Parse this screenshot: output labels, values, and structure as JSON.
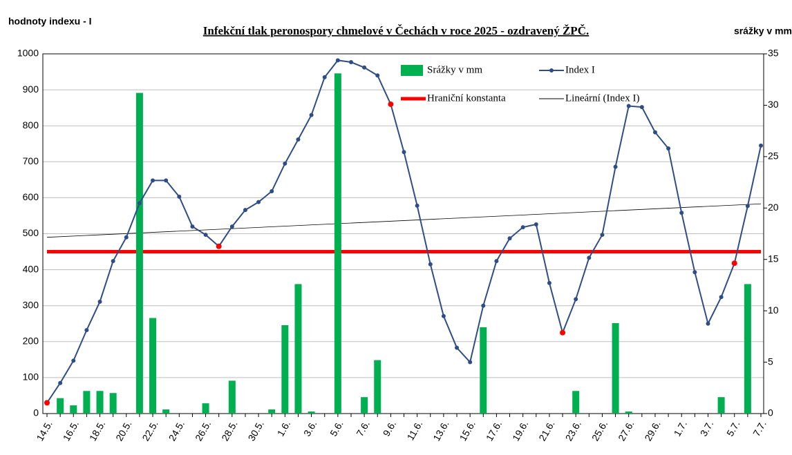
{
  "chart_data": {
    "type": "combo",
    "title": "Infekční tlak peronospory chmelové  v Čechách v roce 2025 - ozdravený ŽPČ.",
    "y_label": "hodnoty indexu - I",
    "y2_label": "srážky v mm",
    "categories": [
      "14.5.",
      null,
      "16.5.",
      null,
      "18.5.",
      null,
      "20.5.",
      null,
      "22.5.",
      null,
      "24.5.",
      null,
      "26.5.",
      null,
      "28.5.",
      null,
      "30.5.",
      null,
      "1.6.",
      null,
      "3.6.",
      null,
      "5.6.",
      null,
      "7.6.",
      null,
      "9.6.",
      null,
      "11.6.",
      null,
      "13.6.",
      null,
      "15.6.",
      null,
      "17.6.",
      null,
      "19.6.",
      null,
      "21.6.",
      null,
      "23.6.",
      null,
      "25.6.",
      null,
      "27.6.",
      null,
      "29.6.",
      null,
      "1.7.",
      null,
      "3.7.",
      null,
      "5.7.",
      null,
      "7.7."
    ],
    "series": [
      {
        "name": "Srážky v mm",
        "type": "bar",
        "axis": "y2",
        "color": "#00b050",
        "values": [
          0,
          1.5,
          0.8,
          2.2,
          2.2,
          2.0,
          0,
          31.2,
          9.3,
          0.4,
          0,
          0,
          1.0,
          0,
          3.2,
          0,
          0,
          0.4,
          8.6,
          12.6,
          0.2,
          0,
          33.1,
          0,
          1.6,
          5.2,
          0,
          0,
          0,
          0,
          0,
          0,
          0,
          8.4,
          0,
          0,
          0,
          0,
          0,
          0,
          2.2,
          0,
          0,
          8.8,
          0.2,
          0,
          0,
          0,
          0,
          0,
          0,
          1.6,
          0,
          12.6,
          0
        ]
      },
      {
        "name": "Index I",
        "type": "line",
        "color": "#2e4d86",
        "values": [
          30,
          85,
          147,
          232,
          311,
          424,
          490,
          585,
          648,
          648,
          603,
          520,
          497,
          465,
          520,
          566,
          588,
          618,
          695,
          762,
          830,
          935,
          982,
          977,
          962,
          940,
          860,
          727,
          578,
          415,
          271,
          183,
          143,
          300,
          424,
          487,
          518,
          526,
          363,
          225,
          318,
          433,
          497,
          686,
          855,
          852,
          782,
          737,
          558,
          393,
          250,
          324,
          418,
          577,
          745
        ],
        "highlight_color": "#ff0000",
        "highlight_indices": [
          0,
          13,
          26,
          39,
          52
        ]
      }
    ],
    "threshold": {
      "name": "Hraniční konstanta",
      "color": "#ff0000",
      "value": 450
    },
    "trendline": {
      "name": "Lineární (Index I)",
      "color": "#000000",
      "values": [
        490,
        583
      ]
    },
    "ylim": [
      0,
      1000
    ],
    "yticks": [
      0,
      100,
      200,
      300,
      400,
      500,
      600,
      700,
      800,
      900,
      1000
    ],
    "y2lim": [
      0,
      35
    ],
    "y2ticks": [
      0,
      5,
      10,
      15,
      20,
      25,
      30,
      35
    ],
    "grid": true
  }
}
